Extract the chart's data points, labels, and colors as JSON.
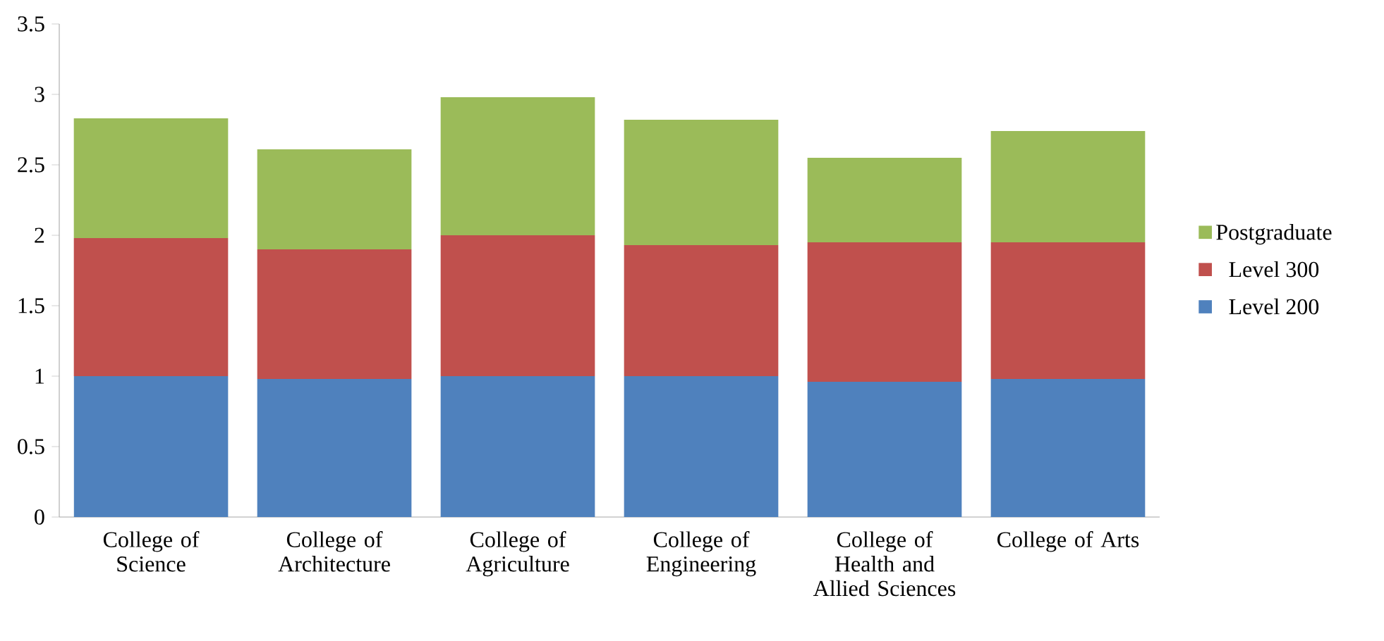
{
  "chart_data": {
    "type": "bar",
    "stacked": true,
    "categories": [
      "College of Science",
      "College of Architecture",
      "College of Agriculture",
      "College of Engineering",
      "College of Health and Allied Sciences",
      "College of Arts"
    ],
    "series": [
      {
        "name": "Level 200",
        "color": "#4f81bd",
        "values": [
          1.0,
          0.98,
          1.0,
          1.0,
          0.96,
          0.98
        ]
      },
      {
        "name": "Level 300",
        "color": "#c0504d",
        "values": [
          0.98,
          0.92,
          1.0,
          0.93,
          0.99,
          0.97
        ]
      },
      {
        "name": "Postgraduate",
        "color": "#9bbb59",
        "values": [
          0.85,
          0.71,
          0.98,
          0.89,
          0.6,
          0.79
        ]
      }
    ],
    "ylim": [
      0,
      3.5
    ],
    "yticks": [
      0,
      0.5,
      1,
      1.5,
      2,
      2.5,
      3,
      3.5
    ],
    "legend": "right",
    "grid": false
  }
}
